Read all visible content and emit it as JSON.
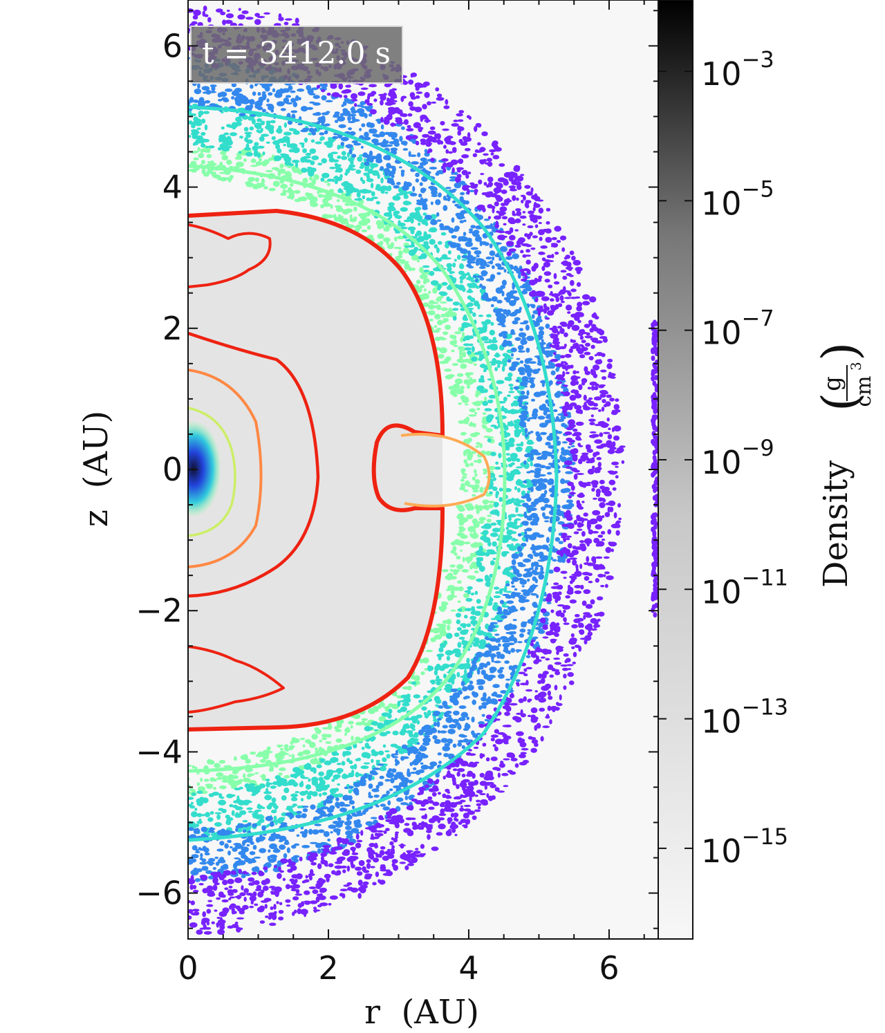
{
  "chart_data": {
    "type": "heatmap",
    "title": "",
    "annotation": "t = 3412.0 s",
    "xlabel": "r  (AU)",
    "ylabel": "z  (AU)",
    "xlim": [
      0,
      6.7
    ],
    "ylim": [
      -6.65,
      6.65
    ],
    "x_ticks": [
      {
        "value": 0,
        "label": "0"
      },
      {
        "value": 2,
        "label": "2"
      },
      {
        "value": 4,
        "label": "4"
      },
      {
        "value": 6,
        "label": "6"
      }
    ],
    "y_ticks": [
      {
        "value": 6,
        "label": "6"
      },
      {
        "value": 4,
        "label": "4"
      },
      {
        "value": 2,
        "label": "2"
      },
      {
        "value": 0,
        "label": "0"
      },
      {
        "value": -2,
        "label": "−2"
      },
      {
        "value": -4,
        "label": "−4"
      },
      {
        "value": -6,
        "label": "−6"
      }
    ],
    "colorbar": {
      "label_main": "Density",
      "unit_num": "g",
      "unit_den_base": "cm",
      "unit_den_exp": "3",
      "scale": "log",
      "range_exp": [
        -16.4,
        -1.9
      ],
      "colors": [
        "#f7f7f7",
        "#000000"
      ],
      "ticks": [
        {
          "exp": -3,
          "base": "10",
          "sup": "−3"
        },
        {
          "exp": -5,
          "base": "10",
          "sup": "−5"
        },
        {
          "exp": -7,
          "base": "10",
          "sup": "−7"
        },
        {
          "exp": -9,
          "base": "10",
          "sup": "−9"
        },
        {
          "exp": -11,
          "base": "10",
          "sup": "−11"
        },
        {
          "exp": -13,
          "base": "10",
          "sup": "−13"
        },
        {
          "exp": -15,
          "base": "10",
          "sup": "−15"
        }
      ]
    },
    "contour_colors": {
      "shock_front": "#ee2211",
      "orange": "#ff8844",
      "yellow_green": "#ccee66",
      "green": "#88ffaa",
      "cyan": "#33ddcc",
      "blue": "#3388ee",
      "violet": "#7722ff"
    }
  }
}
